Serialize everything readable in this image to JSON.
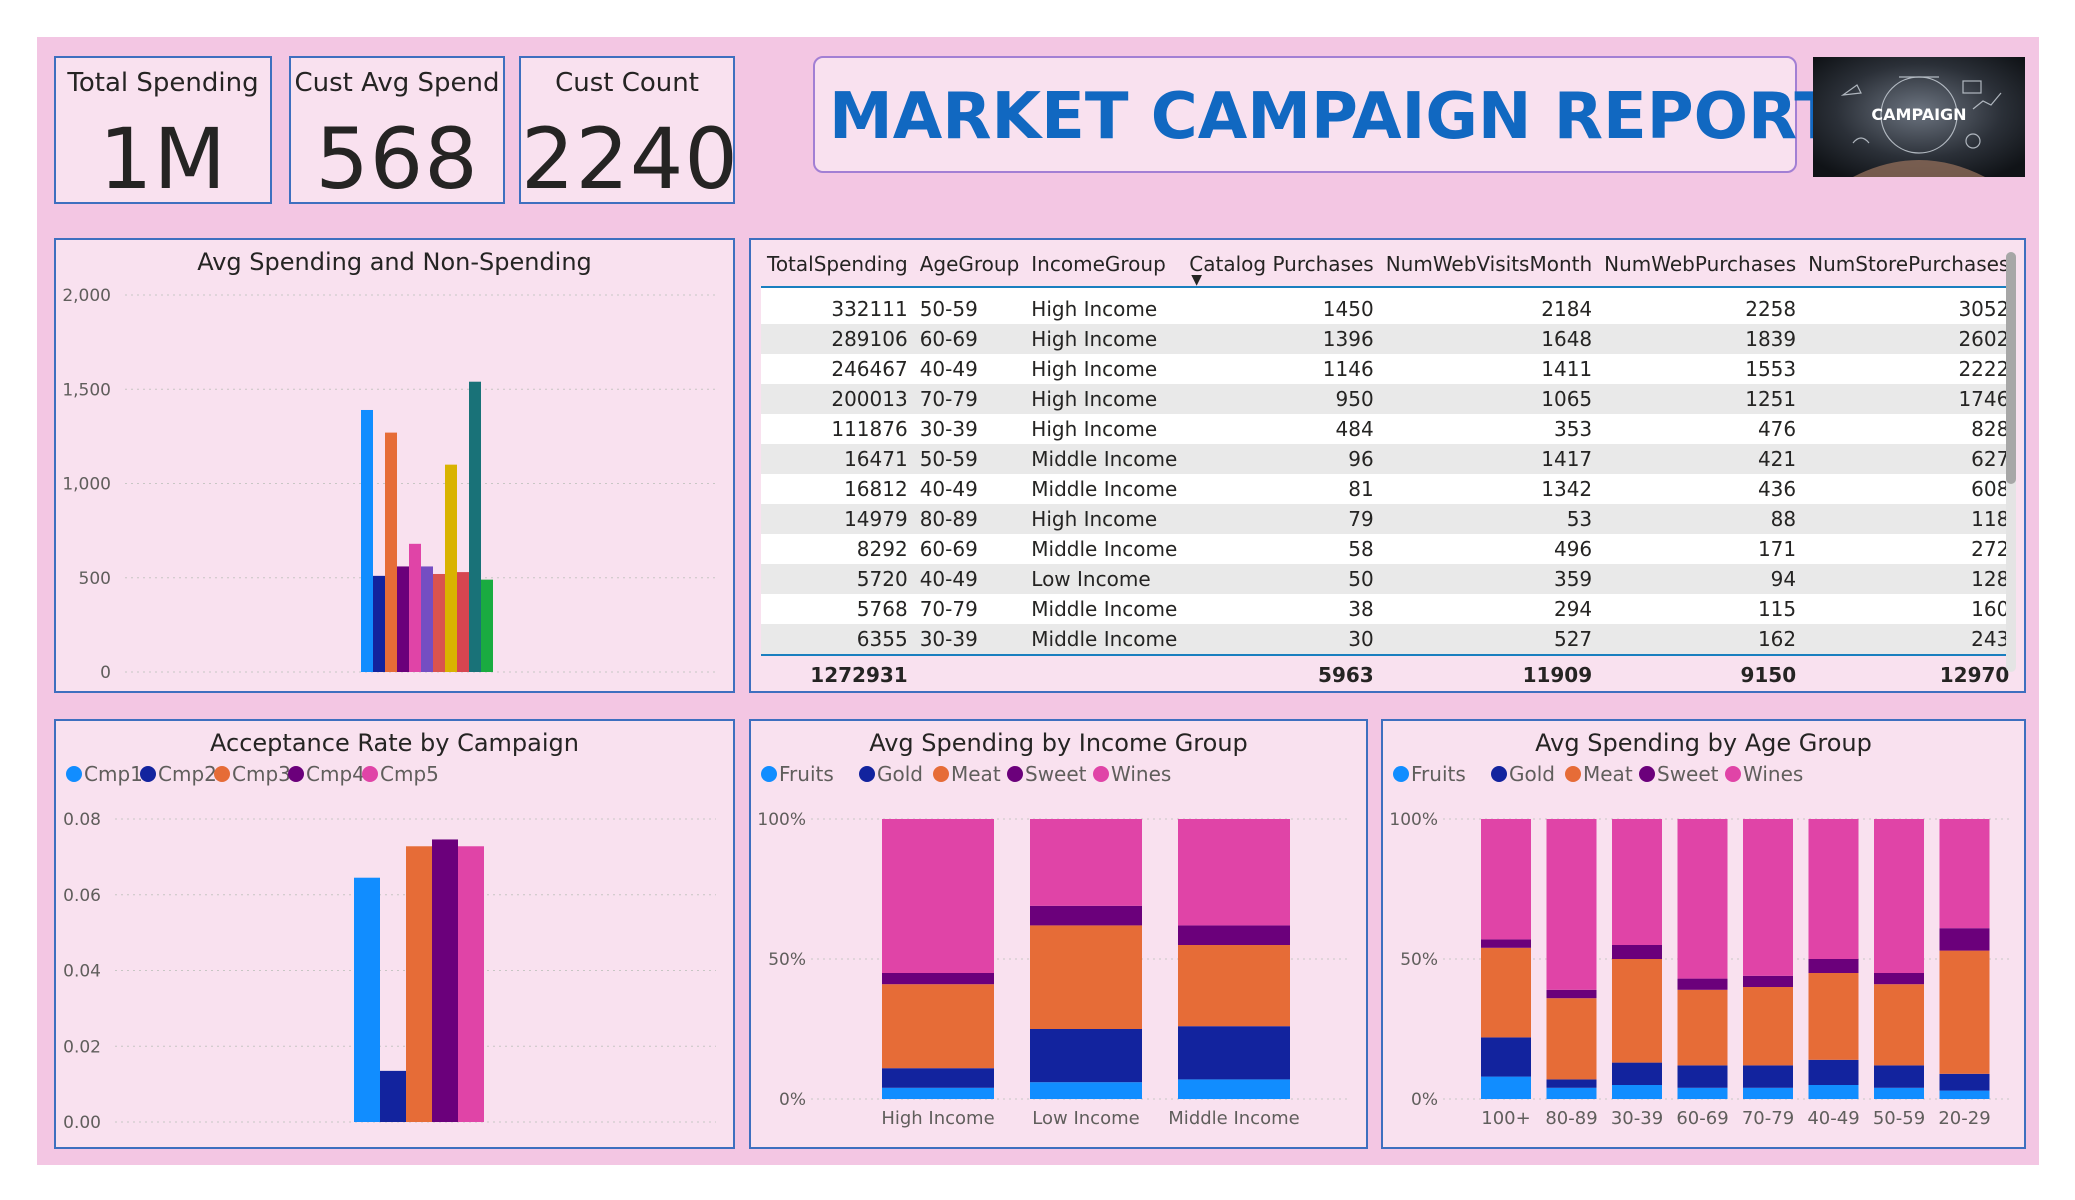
{
  "kpis": [
    {
      "label": "Total Spending",
      "value": "1M"
    },
    {
      "label": "Cust Avg Spend",
      "value": "568"
    },
    {
      "label": "Cust Count",
      "value": "2240"
    }
  ],
  "report_title": "MARKET CAMPAIGN REPORT",
  "logo": {
    "text": "CAMPAIGN"
  },
  "colors": {
    "canvas": "#f3c6e3",
    "panel": "#f9e1ef",
    "border": "#3e6fbf",
    "title": "#1168c1",
    "fruits": "#118dff",
    "gold": "#12239e",
    "meat": "#e66c37",
    "sweet": "#6b007b",
    "wines": "#e044a7"
  },
  "table": {
    "columns": [
      "TotalSpending",
      "AgeGroup",
      "IncomeGroup",
      "Catalog Purchases",
      "NumWebVisitsMonth",
      "NumWebPurchases",
      "NumStorePurchases"
    ],
    "rows": [
      [
        "332111",
        "50-59",
        "High Income",
        "1450",
        "2184",
        "2258",
        "3052"
      ],
      [
        "289106",
        "60-69",
        "High Income",
        "1396",
        "1648",
        "1839",
        "2602"
      ],
      [
        "246467",
        "40-49",
        "High Income",
        "1146",
        "1411",
        "1553",
        "2222"
      ],
      [
        "200013",
        "70-79",
        "High Income",
        "950",
        "1065",
        "1251",
        "1746"
      ],
      [
        "111876",
        "30-39",
        "High Income",
        "484",
        "353",
        "476",
        "828"
      ],
      [
        "16471",
        "50-59",
        "Middle Income",
        "96",
        "1417",
        "421",
        "627"
      ],
      [
        "16812",
        "40-49",
        "Middle Income",
        "81",
        "1342",
        "436",
        "608"
      ],
      [
        "14979",
        "80-89",
        "High Income",
        "79",
        "53",
        "88",
        "118"
      ],
      [
        "8292",
        "60-69",
        "Middle Income",
        "58",
        "496",
        "171",
        "272"
      ],
      [
        "5720",
        "40-49",
        "Low Income",
        "50",
        "359",
        "94",
        "128"
      ],
      [
        "5768",
        "70-79",
        "Middle Income",
        "38",
        "294",
        "115",
        "160"
      ],
      [
        "6355",
        "30-39",
        "Middle Income",
        "30",
        "527",
        "162",
        "243"
      ]
    ],
    "totals": [
      "1272931",
      "",
      "",
      "5963",
      "11909",
      "9150",
      "12970"
    ]
  },
  "chart_data": [
    {
      "id": "avg-spending",
      "type": "bar",
      "title": "Avg Spending and Non-Spending",
      "ylim": [
        0,
        2000
      ],
      "yticks": [
        "0",
        "500",
        "1,000",
        "1,500",
        "2,000"
      ],
      "grid": true,
      "values": [
        1390,
        510,
        1270,
        560,
        680,
        560,
        520,
        1100,
        530,
        1540,
        490
      ],
      "colors": [
        "#118dff",
        "#12239e",
        "#e66c37",
        "#6b007b",
        "#e044a7",
        "#744ec2",
        "#d9534f",
        "#d9b300",
        "#d64550",
        "#197278",
        "#1aab40"
      ]
    },
    {
      "id": "acceptance-rate",
      "type": "bar",
      "title": "Acceptance Rate by Campaign",
      "ylim": [
        0,
        0.08
      ],
      "yticks": [
        "0.00",
        "0.02",
        "0.04",
        "0.06",
        "0.08"
      ],
      "grid": true,
      "legend_position": "top-left",
      "series": [
        {
          "name": "Cmp1",
          "value": 0.0645
        },
        {
          "name": "Cmp2",
          "value": 0.0135
        },
        {
          "name": "Cmp3",
          "value": 0.0728
        },
        {
          "name": "Cmp4",
          "value": 0.0746
        },
        {
          "name": "Cmp5",
          "value": 0.0728
        }
      ]
    },
    {
      "id": "income-group",
      "type": "bar",
      "title": "Avg Spending by Income Group",
      "stacked_percent": true,
      "yticks": [
        "0%",
        "50%",
        "100%"
      ],
      "legend_position": "top-left",
      "categories": [
        "High Income",
        "Low Income",
        "Middle Income"
      ],
      "series": [
        {
          "name": "Fruits",
          "values": [
            4,
            6,
            7
          ]
        },
        {
          "name": "Gold",
          "values": [
            7,
            19,
            19
          ]
        },
        {
          "name": "Meat",
          "values": [
            30,
            37,
            29
          ]
        },
        {
          "name": "Sweet",
          "values": [
            4,
            7,
            7
          ]
        },
        {
          "name": "Wines",
          "values": [
            55,
            31,
            38
          ]
        }
      ]
    },
    {
      "id": "age-group",
      "type": "bar",
      "title": "Avg Spending by Age Group",
      "stacked_percent": true,
      "yticks": [
        "0%",
        "50%",
        "100%"
      ],
      "legend_position": "top-left",
      "categories": [
        "100+",
        "80-89",
        "30-39",
        "60-69",
        "70-79",
        "40-49",
        "50-59",
        "20-29"
      ],
      "series": [
        {
          "name": "Fruits",
          "values": [
            8,
            4,
            5,
            4,
            4,
            5,
            4,
            3
          ]
        },
        {
          "name": "Gold",
          "values": [
            14,
            3,
            8,
            8,
            8,
            9,
            8,
            6
          ]
        },
        {
          "name": "Meat",
          "values": [
            32,
            29,
            37,
            27,
            28,
            31,
            29,
            44
          ]
        },
        {
          "name": "Sweet",
          "values": [
            3,
            3,
            5,
            4,
            4,
            5,
            4,
            8
          ]
        },
        {
          "name": "Wines",
          "values": [
            43,
            61,
            45,
            57,
            56,
            50,
            55,
            39
          ]
        }
      ]
    }
  ]
}
